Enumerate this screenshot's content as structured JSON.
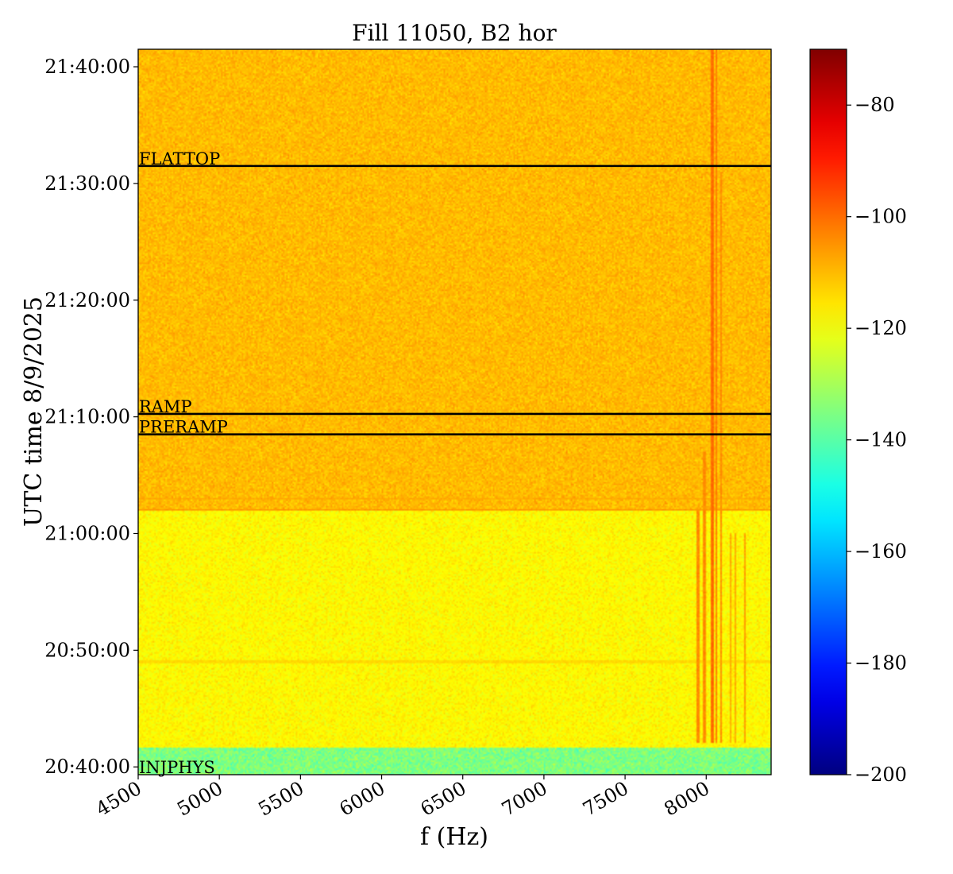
{
  "chart_data": {
    "type": "heatmap",
    "title": "Fill 11050, B2 hor",
    "xlabel": "f (Hz)",
    "ylabel": "UTC time 8/9/2025",
    "xlim": [
      4500,
      8400
    ],
    "ylim": [
      "20:39:20",
      "21:41:30"
    ],
    "x_ticks": [
      4500,
      5000,
      5500,
      6000,
      6500,
      7000,
      7500,
      8000
    ],
    "y_ticks": [
      "20:40:00",
      "20:50:00",
      "21:00:00",
      "21:10:00",
      "21:20:00",
      "21:30:00",
      "21:40:00"
    ],
    "colorbar": {
      "colormap": "jet",
      "range": [
        -200,
        -70
      ],
      "ticks": [
        -80,
        -100,
        -120,
        -140,
        -160,
        -180,
        -200
      ]
    },
    "markers": [
      {
        "label": "FLATTOP",
        "time": "21:31:30"
      },
      {
        "label": "RAMP",
        "time": "21:10:15"
      },
      {
        "label": "PRERAMP",
        "time": "21:08:30"
      },
      {
        "label": "INJPHYS",
        "time": "20:39:20"
      }
    ],
    "regions": [
      {
        "from": "20:39:20",
        "to": "20:41:40",
        "level_db": -135
      },
      {
        "from": "20:41:40",
        "to": "21:02:00",
        "level_db": -118
      },
      {
        "from": "21:02:00",
        "to": "21:41:30",
        "level_db": -110
      }
    ],
    "spectral_lines": [
      {
        "f": 7950,
        "from": "20:42:00",
        "to": "21:02:00",
        "level_db": -104
      },
      {
        "f": 7990,
        "from": "20:42:00",
        "to": "21:07:00",
        "level_db": -104
      },
      {
        "f": 8040,
        "from": "20:42:00",
        "to": "21:41:30",
        "level_db": -100
      },
      {
        "f": 8060,
        "from": "20:42:00",
        "to": "21:41:30",
        "level_db": -102
      },
      {
        "f": 8090,
        "from": "20:42:00",
        "to": "21:31:00",
        "level_db": -104
      },
      {
        "f": 8150,
        "from": "20:42:00",
        "to": "21:00:00",
        "level_db": -108
      },
      {
        "f": 8180,
        "from": "20:42:00",
        "to": "21:00:00",
        "level_db": -108
      },
      {
        "f": 8240,
        "from": "20:42:00",
        "to": "21:00:00",
        "level_db": -106
      }
    ],
    "time_lines": [
      {
        "time": "21:02:00",
        "level_db": -106
      },
      {
        "time": "21:03:00",
        "level_db": -108
      },
      {
        "time": "20:49:00",
        "level_db": -114
      }
    ],
    "grid": false,
    "legend": "none"
  }
}
